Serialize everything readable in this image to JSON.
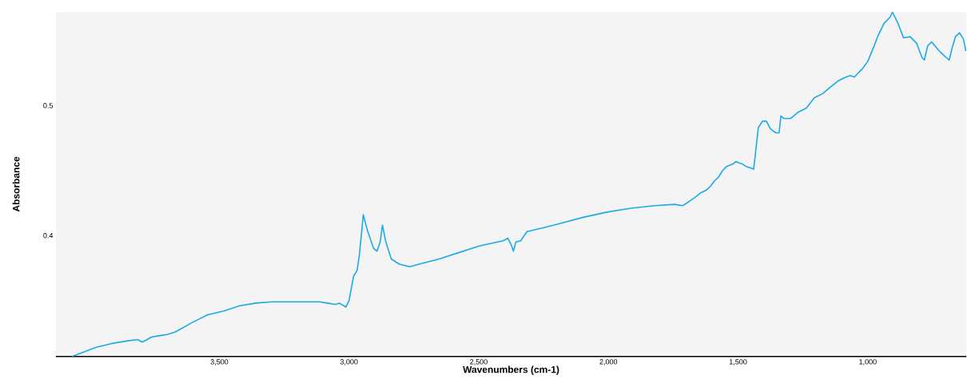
{
  "chart_data": {
    "type": "line",
    "xlabel": "Wavenumbers (cm-1)",
    "ylabel": "Absorbance",
    "xlim": [
      4130,
      620
    ],
    "ylim": [
      0.307,
      0.572
    ],
    "xticks": [
      {
        "value": 3500,
        "label": "3,500"
      },
      {
        "value": 3000,
        "label": "3,000"
      },
      {
        "value": 2500,
        "label": "2,500"
      },
      {
        "value": 2000,
        "label": "2,000"
      },
      {
        "value": 1500,
        "label": "1,500"
      },
      {
        "value": 1000,
        "label": "1,000"
      }
    ],
    "yticks": [
      0.4,
      0.5
    ],
    "grid": false,
    "marker": "none",
    "line_style": "solid",
    "series": [
      {
        "color": "#1aaae8",
        "x": [
          4068,
          3975,
          3914,
          3852,
          3815,
          3797,
          3760,
          3729,
          3698,
          3668,
          3606,
          3545,
          3483,
          3422,
          3360,
          3298,
          3237,
          3175,
          3114,
          3083,
          3052,
          3037,
          3012,
          3000,
          2982,
          2969,
          2960,
          2945,
          2929,
          2905,
          2892,
          2880,
          2871,
          2858,
          2837,
          2806,
          2766,
          2729,
          2652,
          2575,
          2498,
          2406,
          2388,
          2375,
          2366,
          2357,
          2338,
          2314,
          2252,
          2191,
          2098,
          2006,
          1914,
          1822,
          1745,
          1714,
          1698,
          1683,
          1668,
          1643,
          1622,
          1606,
          1591,
          1575,
          1560,
          1545,
          1520,
          1508,
          1498,
          1483,
          1468,
          1452,
          1440,
          1422,
          1406,
          1391,
          1375,
          1354,
          1342,
          1335,
          1323,
          1298,
          1268,
          1237,
          1206,
          1175,
          1145,
          1114,
          1083,
          1068,
          1052,
          1022,
          1000,
          975,
          960,
          938,
          914,
          905,
          883,
          862,
          837,
          812,
          791,
          782,
          769,
          754,
          729,
          714,
          698,
          686,
          674,
          662,
          646,
          631,
          622
        ],
        "values": [
          0.307,
          0.314,
          0.317,
          0.319,
          0.32,
          0.318,
          0.322,
          0.323,
          0.324,
          0.326,
          0.333,
          0.339,
          0.342,
          0.346,
          0.348,
          0.349,
          0.349,
          0.349,
          0.349,
          0.348,
          0.347,
          0.348,
          0.345,
          0.35,
          0.369,
          0.373,
          0.385,
          0.416,
          0.404,
          0.39,
          0.388,
          0.395,
          0.408,
          0.395,
          0.382,
          0.378,
          0.376,
          0.378,
          0.382,
          0.387,
          0.392,
          0.396,
          0.398,
          0.393,
          0.388,
          0.395,
          0.396,
          0.403,
          0.406,
          0.409,
          0.414,
          0.418,
          0.421,
          0.423,
          0.424,
          0.423,
          0.425,
          0.427,
          0.429,
          0.433,
          0.435,
          0.438,
          0.442,
          0.445,
          0.45,
          0.453,
          0.455,
          0.457,
          0.456,
          0.455,
          0.453,
          0.452,
          0.451,
          0.483,
          0.488,
          0.488,
          0.482,
          0.479,
          0.479,
          0.492,
          0.49,
          0.49,
          0.495,
          0.498,
          0.506,
          0.509,
          0.514,
          0.519,
          0.522,
          0.523,
          0.522,
          0.528,
          0.534,
          0.546,
          0.554,
          0.563,
          0.568,
          0.572,
          0.563,
          0.552,
          0.553,
          0.548,
          0.537,
          0.535,
          0.546,
          0.549,
          0.543,
          0.54,
          0.537,
          0.535,
          0.545,
          0.553,
          0.556,
          0.551,
          0.542
        ]
      }
    ]
  }
}
